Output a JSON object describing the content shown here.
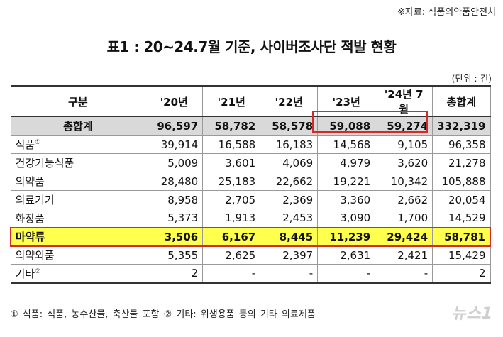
{
  "source": "※자료: 식품의약품안전처",
  "title": "표1 : 20~24.7월 기준, 사이버조사단 적발 현황",
  "unit": "(단위 : 건)",
  "table": {
    "headers": [
      "구분",
      "'20년",
      "'21년",
      "'22년",
      "'23년",
      "'24년 7월",
      "총합계"
    ],
    "total": {
      "label": "총합계",
      "values": [
        "96,597",
        "58,782",
        "58,578",
        "59,088",
        "59,274",
        "332,319"
      ]
    },
    "rows": [
      {
        "label": "식품",
        "note": "①",
        "values": [
          "39,914",
          "16,588",
          "16,183",
          "14,568",
          "9,105",
          "96,358"
        ]
      },
      {
        "label": "건강기능식품",
        "note": "",
        "values": [
          "5,009",
          "3,601",
          "4,069",
          "4,979",
          "3,620",
          "21,278"
        ]
      },
      {
        "label": "의약품",
        "note": "",
        "values": [
          "28,480",
          "25,183",
          "22,662",
          "19,221",
          "10,342",
          "105,888"
        ]
      },
      {
        "label": "의료기기",
        "note": "",
        "values": [
          "8,958",
          "2,705",
          "2,369",
          "3,360",
          "2,662",
          "20,054"
        ]
      },
      {
        "label": "화장품",
        "note": "",
        "values": [
          "5,373",
          "1,913",
          "2,453",
          "3,090",
          "1,700",
          "14,529"
        ]
      },
      {
        "label": "마약류",
        "note": "",
        "values": [
          "3,506",
          "6,167",
          "8,445",
          "11,239",
          "29,424",
          "58,781"
        ]
      },
      {
        "label": "의약외품",
        "note": "",
        "values": [
          "5,355",
          "2,625",
          "2,397",
          "2,631",
          "2,421",
          "15,429"
        ]
      },
      {
        "label": "기타",
        "note": "②",
        "values": [
          "2",
          "-",
          "-",
          "-",
          "-",
          "2"
        ]
      }
    ]
  },
  "footnote": "① 식품: 식품, 농수산물, 축산물 포함 ② 기타: 위생용품 등의 기타 의료제품",
  "watermark": "뉴스1",
  "colors": {
    "highlight_fill": "#ffff4d",
    "highlight_border": "#d62a2a",
    "total_fill": "#d9d9d9"
  }
}
